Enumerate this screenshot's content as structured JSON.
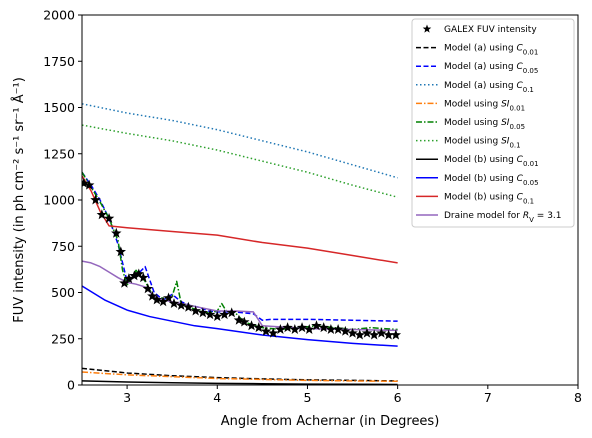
{
  "chart_data": {
    "type": "line",
    "xlabel": "Angle from Achernar (in Degrees)",
    "ylabel": "FUV intensity (in ph cm⁻² s⁻¹ sr⁻¹ Å⁻¹)",
    "xlim": [
      2.5,
      8
    ],
    "ylim": [
      0,
      2000
    ],
    "xticks": [
      "3",
      "4",
      "5",
      "6",
      "7",
      "8"
    ],
    "yticks": [
      "0",
      "250",
      "500",
      "750",
      "1000",
      "1250",
      "1500",
      "1750",
      "2000"
    ],
    "grid": false,
    "legend_position": "top-right",
    "series": [
      {
        "name": "GALEX FUV intensity",
        "kind": "scatter",
        "marker": "star",
        "color": "#000000",
        "x": [
          2.52,
          2.58,
          2.65,
          2.72,
          2.8,
          2.88,
          2.93,
          2.97,
          3.02,
          3.08,
          3.13,
          3.18,
          3.23,
          3.28,
          3.33,
          3.4,
          3.46,
          3.52,
          3.6,
          3.68,
          3.76,
          3.84,
          3.92,
          4.0,
          4.08,
          4.16,
          4.24,
          4.3,
          4.38,
          4.46,
          4.54,
          4.62,
          4.7,
          4.78,
          4.86,
          4.94,
          5.02,
          5.1,
          5.18,
          5.26,
          5.34,
          5.42,
          5.5,
          5.58,
          5.66,
          5.74,
          5.82,
          5.9,
          5.98
        ],
        "y": [
          1090,
          1080,
          1000,
          920,
          900,
          820,
          720,
          550,
          575,
          590,
          600,
          580,
          520,
          480,
          460,
          450,
          470,
          440,
          430,
          420,
          400,
          390,
          380,
          370,
          380,
          390,
          350,
          340,
          320,
          310,
          290,
          280,
          300,
          310,
          300,
          310,
          300,
          320,
          310,
          300,
          300,
          290,
          280,
          270,
          280,
          270,
          280,
          270,
          270
        ]
      },
      {
        "name": "Model (a) using C_{0.01}",
        "kind": "line",
        "color": "#000000",
        "dash": "dashed",
        "x": [
          2.5,
          3.0,
          3.5,
          4.0,
          4.5,
          5.0,
          5.5,
          6.0
        ],
        "y": [
          90,
          65,
          50,
          40,
          33,
          28,
          25,
          22
        ]
      },
      {
        "name": "Model (a) using C_{0.05}",
        "kind": "line",
        "color": "#0000ff",
        "dash": "dashed",
        "x": [
          2.5,
          2.6,
          2.7,
          2.8,
          2.9,
          3.0,
          3.1,
          3.2,
          3.3,
          3.4,
          3.5,
          3.6,
          3.7,
          3.8,
          3.9,
          4.0,
          4.2,
          4.4,
          4.5,
          4.6,
          5.0,
          5.5,
          6.0
        ],
        "y": [
          1150,
          1080,
          1000,
          900,
          760,
          560,
          590,
          640,
          500,
          460,
          490,
          450,
          430,
          420,
          400,
          395,
          395,
          385,
          350,
          355,
          355,
          350,
          345
        ]
      },
      {
        "name": "Model (a) using C_{0.1}",
        "kind": "line",
        "color": "#1f77b4",
        "dash": "dotted",
        "x": [
          2.5,
          3.0,
          3.5,
          4.0,
          4.5,
          5.0,
          5.5,
          6.0
        ],
        "y": [
          1520,
          1470,
          1430,
          1380,
          1320,
          1260,
          1190,
          1120
        ]
      },
      {
        "name": "Model using SI_{0.01}",
        "kind": "line",
        "color": "#ff7f0e",
        "dash": "dashdot",
        "x": [
          2.5,
          3.0,
          3.5,
          4.0,
          4.5,
          5.0,
          5.5,
          6.0
        ],
        "y": [
          70,
          55,
          45,
          35,
          30,
          25,
          22,
          20
        ]
      },
      {
        "name": "Model using SI_{0.05}",
        "kind": "line",
        "color": "#008000",
        "dash": "dashdot",
        "x": [
          2.5,
          2.6,
          2.7,
          2.8,
          2.9,
          2.95,
          3.0,
          3.1,
          3.2,
          3.3,
          3.4,
          3.5,
          3.55,
          3.6,
          3.7,
          3.8,
          3.9,
          4.0,
          4.05,
          4.1,
          4.2,
          4.3,
          4.5,
          4.7,
          4.9,
          5.1,
          5.3,
          5.5,
          5.7,
          6.0
        ],
        "y": [
          1150,
          1070,
          990,
          900,
          780,
          620,
          540,
          620,
          560,
          470,
          470,
          480,
          560,
          440,
          420,
          400,
          390,
          400,
          440,
          400,
          390,
          340,
          310,
          300,
          310,
          320,
          310,
          300,
          310,
          300
        ]
      },
      {
        "name": "Model using SI_{0.1}",
        "kind": "line",
        "color": "#2ca02c",
        "dash": "dotted",
        "x": [
          2.5,
          3.0,
          3.5,
          4.0,
          4.5,
          5.0,
          5.5,
          6.0
        ],
        "y": [
          1405,
          1360,
          1320,
          1270,
          1210,
          1150,
          1080,
          1015
        ]
      },
      {
        "name": "Model (b) using C_{0.01}",
        "kind": "line",
        "color": "#000000",
        "dash": "solid",
        "x": [
          2.5,
          3.0,
          3.5,
          4.0,
          4.5,
          5.0,
          5.5,
          6.0
        ],
        "y": [
          22,
          16,
          12,
          9,
          7,
          5,
          4,
          3
        ]
      },
      {
        "name": "Model (b) using C_{0.05}",
        "kind": "line",
        "color": "#0000ff",
        "dash": "solid",
        "x": [
          2.5,
          2.75,
          3.0,
          3.25,
          3.5,
          3.75,
          4.0,
          4.5,
          5.0,
          5.5,
          6.0
        ],
        "y": [
          535,
          460,
          405,
          370,
          345,
          320,
          305,
          270,
          245,
          225,
          210
        ]
      },
      {
        "name": "Model (b) using C_{0.1}",
        "kind": "line",
        "color": "#d62728",
        "dash": "solid",
        "x": [
          2.5,
          2.6,
          2.7,
          2.8,
          3.0,
          3.5,
          4.0,
          4.5,
          5.0,
          5.5,
          6.0
        ],
        "y": [
          1130,
          1050,
          940,
          860,
          850,
          830,
          810,
          770,
          740,
          700,
          660
        ]
      },
      {
        "name": "Draine model for R_V = 3.1",
        "kind": "line",
        "color": "#9467bd",
        "dash": "solid",
        "x": [
          2.5,
          2.6,
          2.7,
          2.8,
          2.9,
          3.0,
          3.1,
          3.2,
          3.3,
          3.4,
          3.5,
          3.6,
          3.8,
          4.0,
          4.2,
          4.4,
          4.5,
          5.0,
          5.5,
          6.0
        ],
        "y": [
          670,
          660,
          640,
          610,
          580,
          555,
          545,
          530,
          480,
          460,
          450,
          440,
          420,
          400,
          400,
          395,
          320,
          305,
          300,
          295
        ]
      }
    ]
  }
}
